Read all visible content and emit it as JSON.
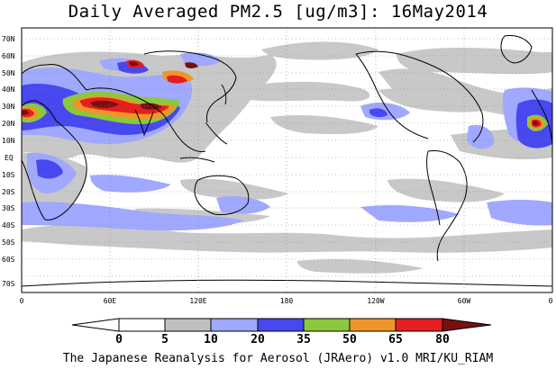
{
  "title": "Daily Averaged PM2.5 [ug/m3]: 16May2014",
  "credit": "The Japanese Reanalysis for Aerosol (JRAero) v1.0 MRI/KU_RIAM",
  "lat_labels": [
    "70N",
    "60N",
    "50N",
    "40N",
    "30N",
    "20N",
    "10N",
    "EQ",
    "10S",
    "20S",
    "30S",
    "40S",
    "50S",
    "60S",
    "70S"
  ],
  "lon_labels": [
    "0",
    "60E",
    "120E",
    "180",
    "120W",
    "60W",
    "0"
  ],
  "colorbar": {
    "ticks": [
      "0",
      "5",
      "10",
      "20",
      "35",
      "50",
      "65",
      "80"
    ],
    "colors": [
      "#ffffff",
      "#ffffff",
      "#c0c0c0",
      "#a0a8ff",
      "#4848f0",
      "#8cc83c",
      "#f09628",
      "#e61e1e",
      "#7a0f0f"
    ]
  }
}
